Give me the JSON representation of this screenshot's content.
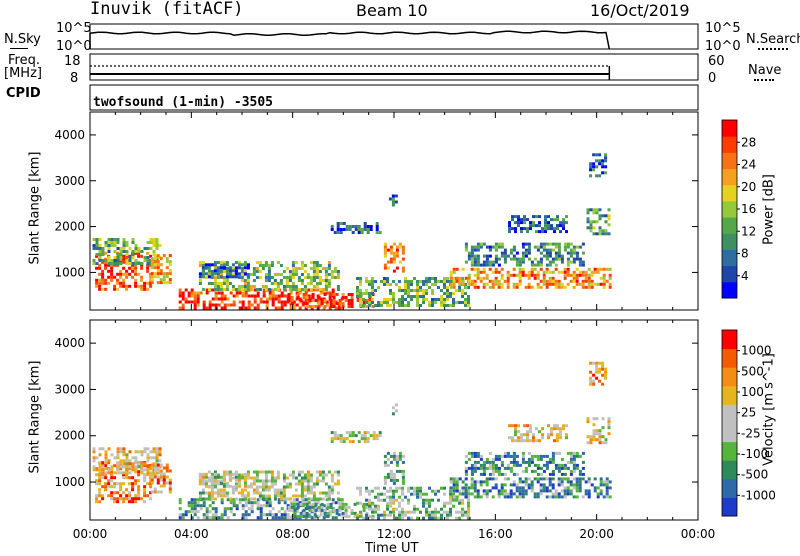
{
  "header": {
    "station": "Inuvik  (fitACF)",
    "beam": "Beam 10",
    "date": "16/Oct/2019"
  },
  "panels": {
    "nsky_label": "N.Sky",
    "nsky_ticks": [
      "10^5",
      "10^0"
    ],
    "nsearch_label": "N.Search",
    "freq_label_1": "Freq.",
    "freq_label_2": "[MHz]",
    "freq_ticks": [
      "18",
      "8"
    ],
    "nave_label": "Nave",
    "nave_ticks": [
      "60",
      "0"
    ],
    "cpid_label": "CPID",
    "cpid_text": "twofsound (1-min) -3505"
  },
  "chart_data": [
    {
      "type": "heatmap",
      "name": "power",
      "ylabel": "Slant Range [km]",
      "colorbar_label": "Power [dB]",
      "colorbar_ticks": [
        "28",
        "24",
        "20",
        "16",
        "12",
        "8",
        "4"
      ],
      "colorbar_colors": [
        "#0000ff",
        "#1e46a8",
        "#2e6e9e",
        "#3e8f62",
        "#55a84a",
        "#96c83c",
        "#e6d21e",
        "#f5a01e",
        "#f57314",
        "#ff3c00",
        "#ff0000"
      ],
      "ylim": [
        180,
        4500
      ],
      "y_ticks": [
        1000,
        2000,
        3000,
        4000
      ],
      "xlim_hours": [
        0,
        24
      ],
      "data_end_hour": 20.5,
      "echo_regions": [
        {
          "t0": 0.2,
          "t1": 2.4,
          "r0": 600,
          "r1": 1450,
          "level": 0.85
        },
        {
          "t0": 0.1,
          "t1": 2.8,
          "r0": 1200,
          "r1": 1750,
          "level": 0.4
        },
        {
          "t0": 2.4,
          "t1": 3.2,
          "r0": 800,
          "r1": 1400,
          "level": 0.7
        },
        {
          "t0": 3.5,
          "t1": 10.0,
          "r0": 250,
          "r1": 650,
          "level": 0.9
        },
        {
          "t0": 4.3,
          "t1": 9.8,
          "r0": 650,
          "r1": 1250,
          "level": 0.45
        },
        {
          "t0": 4.3,
          "t1": 6.3,
          "r0": 900,
          "r1": 1200,
          "level": 0.15
        },
        {
          "t0": 7.8,
          "t1": 11.2,
          "r0": 250,
          "r1": 550,
          "level": 0.85
        },
        {
          "t0": 11.6,
          "t1": 12.4,
          "r0": 1000,
          "r1": 1650,
          "level": 0.75
        },
        {
          "t0": 10.5,
          "t1": 15.0,
          "r0": 250,
          "r1": 900,
          "level": 0.4
        },
        {
          "t0": 14.2,
          "t1": 20.5,
          "r0": 700,
          "r1": 1100,
          "level": 0.7
        },
        {
          "t0": 14.8,
          "t1": 19.5,
          "r0": 1150,
          "r1": 1650,
          "level": 0.3
        },
        {
          "t0": 16.5,
          "t1": 18.8,
          "r0": 1900,
          "r1": 2250,
          "level": 0.2
        },
        {
          "t0": 19.6,
          "t1": 20.5,
          "r0": 1850,
          "r1": 2400,
          "level": 0.35
        },
        {
          "t0": 19.7,
          "t1": 20.4,
          "r0": 3100,
          "r1": 3600,
          "level": 0.2
        },
        {
          "t0": 11.8,
          "t1": 12.1,
          "r0": 2500,
          "r1": 2700,
          "level": 0.2
        },
        {
          "t0": 9.5,
          "t1": 11.5,
          "r0": 1850,
          "r1": 2100,
          "level": 0.2
        }
      ]
    },
    {
      "type": "heatmap",
      "name": "velocity",
      "ylabel": "Slant Range [km]",
      "colorbar_label": "Velocity [m s^-1]",
      "colorbar_ticks": [
        "1000",
        "500",
        "100",
        "25",
        "-25",
        "-100",
        "-500",
        "-1000"
      ],
      "colorbar_colors": [
        "#1e3cc8",
        "#2e6aa8",
        "#2e8a5a",
        "#55b43c",
        "#c0c0c0",
        "#c0c0c0",
        "#e6b41e",
        "#f58c14",
        "#f55a00",
        "#ff0000"
      ],
      "ylim": [
        180,
        4500
      ],
      "y_ticks": [
        1000,
        2000,
        3000,
        4000
      ],
      "xlim_hours": [
        0,
        24
      ],
      "xtick_labels": [
        "00:00",
        "04:00",
        "08:00",
        "12:00",
        "16:00",
        "20:00",
        "00:00"
      ],
      "xlabel": "Time UT",
      "data_end_hour": 20.5,
      "echo_regions": [
        {
          "t0": 0.2,
          "t1": 2.4,
          "r0": 600,
          "r1": 1450,
          "level": 0.75
        },
        {
          "t0": 0.1,
          "t1": 2.8,
          "r0": 1200,
          "r1": 1750,
          "level": 0.6
        },
        {
          "t0": 2.4,
          "t1": 3.2,
          "r0": 800,
          "r1": 1400,
          "level": 0.7
        },
        {
          "t0": 3.5,
          "t1": 10.0,
          "r0": 250,
          "r1": 650,
          "level": 0.3
        },
        {
          "t0": 4.3,
          "t1": 9.8,
          "r0": 650,
          "r1": 1250,
          "level": 0.5
        },
        {
          "t0": 4.3,
          "t1": 6.3,
          "r0": 900,
          "r1": 1200,
          "level": 0.5
        },
        {
          "t0": 7.8,
          "t1": 11.2,
          "r0": 250,
          "r1": 550,
          "level": 0.35
        },
        {
          "t0": 11.6,
          "t1": 12.4,
          "r0": 1000,
          "r1": 1650,
          "level": 0.35
        },
        {
          "t0": 10.5,
          "t1": 15.0,
          "r0": 250,
          "r1": 900,
          "level": 0.4
        },
        {
          "t0": 14.2,
          "t1": 20.5,
          "r0": 700,
          "r1": 1100,
          "level": 0.25
        },
        {
          "t0": 14.8,
          "t1": 19.5,
          "r0": 1150,
          "r1": 1650,
          "level": 0.25
        },
        {
          "t0": 16.5,
          "t1": 18.8,
          "r0": 1900,
          "r1": 2250,
          "level": 0.6
        },
        {
          "t0": 19.6,
          "t1": 20.5,
          "r0": 1850,
          "r1": 2400,
          "level": 0.6
        },
        {
          "t0": 19.7,
          "t1": 20.4,
          "r0": 3100,
          "r1": 3600,
          "level": 0.7
        },
        {
          "t0": 11.8,
          "t1": 12.1,
          "r0": 2500,
          "r1": 2700,
          "level": 0.5
        },
        {
          "t0": 9.5,
          "t1": 11.5,
          "r0": 1850,
          "r1": 2100,
          "level": 0.5
        }
      ]
    }
  ]
}
